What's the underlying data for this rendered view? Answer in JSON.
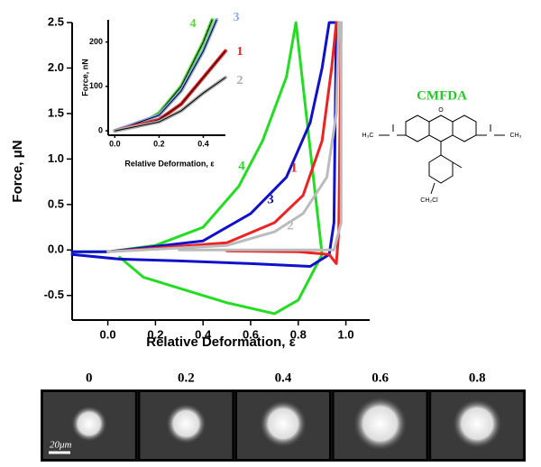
{
  "chart_data": [
    {
      "type": "line",
      "xlabel": "Relative Deformation, ε",
      "ylabel": "Force, μN",
      "xlim": [
        -0.15,
        1.1
      ],
      "ylim": [
        -0.77,
        2.5
      ],
      "xticks": [
        {
          "value": 0,
          "label": "0.0"
        },
        0.2,
        0.4,
        0.6,
        0.8,
        {
          "value": 1,
          "label": "1.0"
        }
      ],
      "yticks": [
        {
          "value": -0.5,
          "label": "-0.5"
        },
        {
          "value": 0,
          "label": "0.0"
        },
        0.5,
        {
          "value": 1,
          "label": "1.0"
        },
        1.5,
        {
          "value": 2,
          "label": "2.0"
        },
        2.5
      ],
      "series": [
        {
          "name": "4",
          "color": "#22dd22",
          "x": [
            -0.15,
            0,
            0.2,
            0.4,
            0.55,
            0.65,
            0.75,
            0.79,
            0.9,
            0.8,
            0.7,
            0.5,
            0.3,
            0.15,
            0.05
          ],
          "values": [
            -0.02,
            -0.02,
            0.05,
            0.25,
            0.7,
            1.2,
            1.9,
            2.5,
            -0.05,
            -0.55,
            -0.7,
            -0.58,
            -0.42,
            -0.3,
            -0.08
          ]
        },
        {
          "name": "3",
          "color": "#1111cc",
          "x": [
            -0.15,
            0,
            0.4,
            0.6,
            0.75,
            0.85,
            0.9,
            0.93,
            0.96,
            0.95,
            0.93,
            0.85,
            0.6,
            0.3,
            0.05,
            -0.15
          ],
          "values": [
            -0.02,
            -0.02,
            0.1,
            0.4,
            0.8,
            1.4,
            2.0,
            2.5,
            2.5,
            0.3,
            -0.05,
            -0.18,
            -0.15,
            -0.12,
            -0.1,
            -0.05
          ]
        },
        {
          "name": "1",
          "color": "#ee2222",
          "x": [
            0,
            0.5,
            0.7,
            0.82,
            0.9,
            0.94,
            0.96,
            0.98,
            0.97,
            0.96,
            0.93,
            0.8,
            0.5
          ],
          "values": [
            -0.02,
            0.08,
            0.3,
            0.6,
            1.2,
            2.0,
            2.5,
            2.5,
            0.2,
            -0.15,
            -0.05,
            -0.02,
            -0.01
          ]
        },
        {
          "name": "2",
          "color": "#bbbbbb",
          "x": [
            0,
            0.5,
            0.7,
            0.82,
            0.92,
            0.96,
            0.97,
            0.98,
            0.98,
            0.95,
            0.7,
            0.3
          ],
          "values": [
            -0.02,
            0.05,
            0.2,
            0.4,
            0.8,
            1.5,
            2.5,
            2.5,
            0.3,
            0,
            0,
            0
          ]
        }
      ]
    },
    {
      "type": "line",
      "xlabel": "Relative Deformation, ε",
      "ylabel": "Force, nN",
      "xlim": [
        -0.03,
        0.5
      ],
      "ylim": [
        -10,
        250
      ],
      "xticks": [
        {
          "value": 0,
          "label": "0.0"
        },
        0.2,
        0.4
      ],
      "yticks": [
        0,
        100,
        200
      ],
      "series": [
        {
          "name": "4",
          "color": "#55dd33",
          "x": [
            0,
            0.1,
            0.2,
            0.3,
            0.4,
            0.44
          ],
          "values": [
            0,
            10,
            40,
            100,
            200,
            250
          ]
        },
        {
          "name": "3",
          "color": "#88aaee",
          "x": [
            0,
            0.2,
            0.3,
            0.4,
            0.46
          ],
          "values": [
            0,
            35,
            90,
            180,
            250
          ]
        },
        {
          "name": "1",
          "color": "#ee2222",
          "x": [
            0,
            0.2,
            0.3,
            0.4,
            0.5
          ],
          "values": [
            0,
            25,
            60,
            120,
            180
          ]
        },
        {
          "name": "2",
          "color": "#aaaaaa",
          "x": [
            0,
            0.2,
            0.3,
            0.4,
            0.5
          ],
          "values": [
            0,
            20,
            45,
            85,
            120
          ]
        }
      ]
    }
  ],
  "structure": {
    "title": "CMFDA",
    "labels": [
      "H₃C",
      "CH₃",
      "O",
      "CH₂Cl"
    ]
  },
  "images": {
    "labels": [
      "0",
      "0.2",
      "0.4",
      "0.6",
      "0.8"
    ],
    "scale": "20μm"
  }
}
